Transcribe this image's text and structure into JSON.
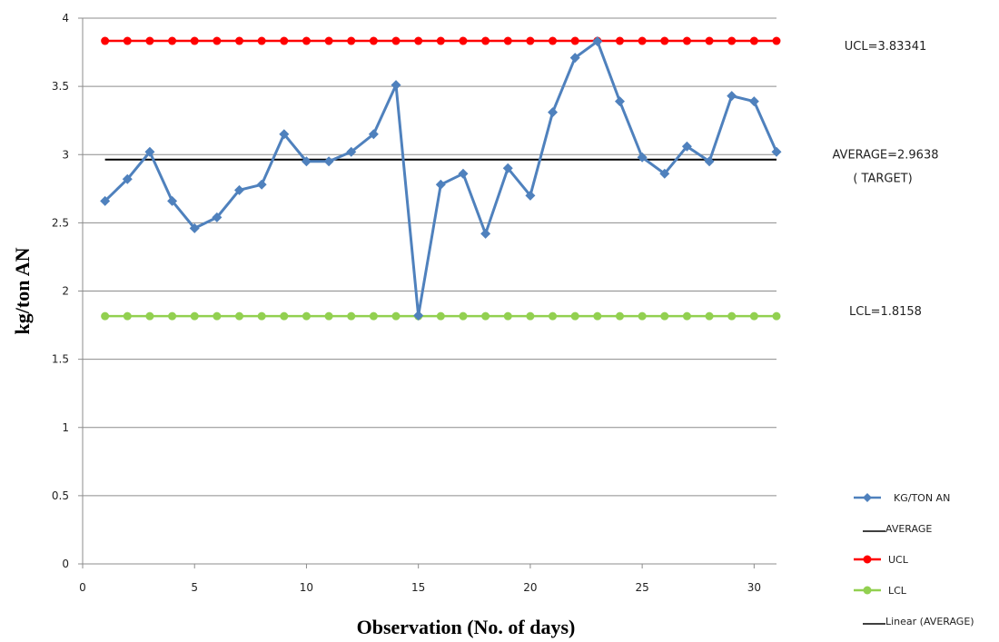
{
  "chart_data": {
    "type": "line",
    "xlabel": "Observation (No. of days)",
    "ylabel": "kg/ton AN",
    "xlim": [
      0,
      31
    ],
    "ylim": [
      0,
      4
    ],
    "x_ticks": [
      0,
      5,
      10,
      15,
      20,
      25,
      30
    ],
    "y_ticks": [
      0,
      0.5,
      1,
      1.5,
      2,
      2.5,
      3,
      3.5,
      4
    ],
    "grid": "horizontal",
    "legend_position": "right",
    "x": [
      1,
      2,
      3,
      4,
      5,
      6,
      7,
      8,
      9,
      10,
      11,
      12,
      13,
      14,
      15,
      16,
      17,
      18,
      19,
      20,
      21,
      22,
      23,
      24,
      25,
      26,
      27,
      28,
      29,
      30,
      31
    ],
    "series": [
      {
        "name": "KG/TON AN",
        "color": "#4f81bd",
        "marker": "diamond",
        "values": [
          2.66,
          2.82,
          3.02,
          2.66,
          2.46,
          2.54,
          2.74,
          2.78,
          3.15,
          2.95,
          2.95,
          3.02,
          3.15,
          3.51,
          1.82,
          2.78,
          2.86,
          2.42,
          2.9,
          2.7,
          3.31,
          3.71,
          3.83,
          3.39,
          2.98,
          2.86,
          3.06,
          2.95,
          3.43,
          3.39,
          3.02
        ]
      },
      {
        "name": "AVERAGE",
        "color": "#000000",
        "marker": "none",
        "values": [
          2.9638,
          2.9638,
          2.9638,
          2.9638,
          2.9638,
          2.9638,
          2.9638,
          2.9638,
          2.9638,
          2.9638,
          2.9638,
          2.9638,
          2.9638,
          2.9638,
          2.9638,
          2.9638,
          2.9638,
          2.9638,
          2.9638,
          2.9638,
          2.9638,
          2.9638,
          2.9638,
          2.9638,
          2.9638,
          2.9638,
          2.9638,
          2.9638,
          2.9638,
          2.9638,
          2.9638
        ]
      },
      {
        "name": "UCL",
        "color": "#ff0000",
        "marker": "circle",
        "values": [
          3.83341,
          3.83341,
          3.83341,
          3.83341,
          3.83341,
          3.83341,
          3.83341,
          3.83341,
          3.83341,
          3.83341,
          3.83341,
          3.83341,
          3.83341,
          3.83341,
          3.83341,
          3.83341,
          3.83341,
          3.83341,
          3.83341,
          3.83341,
          3.83341,
          3.83341,
          3.83341,
          3.83341,
          3.83341,
          3.83341,
          3.83341,
          3.83341,
          3.83341,
          3.83341,
          3.83341
        ]
      },
      {
        "name": "LCL",
        "color": "#92d050",
        "marker": "circle",
        "values": [
          1.8158,
          1.8158,
          1.8158,
          1.8158,
          1.8158,
          1.8158,
          1.8158,
          1.8158,
          1.8158,
          1.8158,
          1.8158,
          1.8158,
          1.8158,
          1.8158,
          1.8158,
          1.8158,
          1.8158,
          1.8158,
          1.8158,
          1.8158,
          1.8158,
          1.8158,
          1.8158,
          1.8158,
          1.8158,
          1.8158,
          1.8158,
          1.8158,
          1.8158,
          1.8158,
          1.8158
        ]
      }
    ],
    "trendline": {
      "name": "Linear (AVERAGE)",
      "color": "#000000"
    },
    "annotations": [
      {
        "text": "UCL=3.83341",
        "series": "UCL"
      },
      {
        "text": "AVERAGE=2.9638",
        "series": "AVERAGE"
      },
      {
        "text": "( TARGET)",
        "series": "AVERAGE"
      },
      {
        "text": "LCL=1.8158",
        "series": "LCL"
      }
    ],
    "legend": [
      {
        "label": "KG/TON AN",
        "color": "#4f81bd",
        "marker": "diamond"
      },
      {
        "label": "AVERAGE",
        "color": "#000000",
        "marker": "none"
      },
      {
        "label": "UCL",
        "color": "#ff0000",
        "marker": "circle"
      },
      {
        "label": "LCL",
        "color": "#92d050",
        "marker": "circle"
      },
      {
        "label": "Linear (AVERAGE)",
        "color": "#000000",
        "marker": "none"
      }
    ]
  }
}
